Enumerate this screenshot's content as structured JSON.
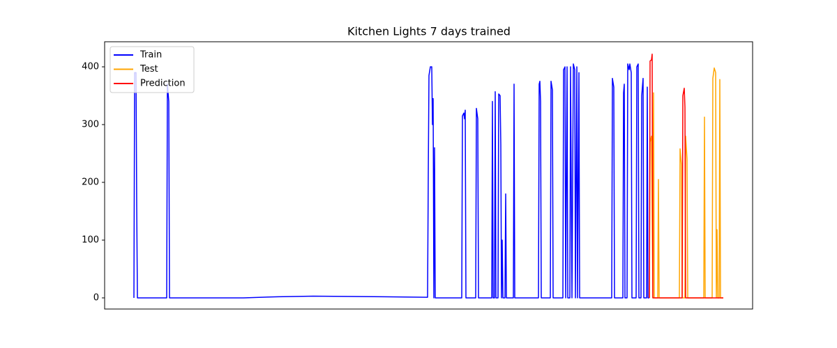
{
  "chart_data": {
    "type": "line",
    "title": "Kitchen Lights 7 days trained",
    "xlim": [
      -42,
      887
    ],
    "ylim": [
      -19.3,
      443.4
    ],
    "yticks": [
      0,
      100,
      200,
      300,
      400
    ],
    "legend": "upper left",
    "series": [
      {
        "name": "Train",
        "color": "#0000ff",
        "x": [
          0,
          1,
          3,
          4,
          5,
          47,
          48,
          50,
          51,
          157,
          207,
          257,
          357,
          421,
          422,
          423,
          425,
          427,
          428,
          429,
          430,
          431,
          432,
          470,
          471,
          473,
          474,
          475,
          476,
          490,
          491,
          493,
          494,
          513,
          514,
          515,
          517,
          518,
          519,
          522,
          523,
          525,
          526,
          527,
          528,
          529,
          532,
          533,
          534,
          544,
          545,
          546,
          580,
          581,
          582,
          583,
          584,
          597,
          598,
          600,
          601,
          615,
          616,
          618,
          619,
          621,
          622,
          625,
          626,
          628,
          630,
          632,
          633,
          635,
          636,
          638,
          639,
          685,
          686,
          688,
          689,
          701,
          702,
          703,
          704,
          707,
          708,
          710,
          711,
          713,
          714,
          720,
          721,
          723,
          724,
          727,
          728,
          730,
          731,
          735,
          736,
          737,
          739
        ],
        "values": [
          0,
          390,
          390,
          160,
          0,
          0,
          370,
          340,
          0,
          0,
          2,
          3,
          2,
          1,
          210,
          385,
          400,
          400,
          300,
          345,
          0,
          260,
          0,
          0,
          315,
          320,
          310,
          325,
          0,
          0,
          328,
          310,
          0,
          0,
          340,
          0,
          0,
          357,
          0,
          0,
          353,
          350,
          265,
          0,
          100,
          0,
          0,
          180,
          0,
          0,
          370,
          0,
          0,
          370,
          375,
          340,
          0,
          0,
          375,
          360,
          0,
          0,
          395,
          400,
          0,
          400,
          0,
          0,
          400,
          0,
          405,
          395,
          0,
          400,
          0,
          390,
          0,
          0,
          380,
          365,
          0,
          0,
          355,
          370,
          0,
          0,
          405,
          395,
          405,
          390,
          0,
          0,
          400,
          405,
          0,
          0,
          350,
          380,
          0,
          0,
          365,
          0,
          0
        ]
      },
      {
        "name": "Test",
        "color": "#ffa500",
        "x": [
          739,
          740,
          742,
          744,
          745,
          746,
          751,
          752,
          753,
          782,
          783,
          785,
          786,
          790,
          791,
          793,
          794,
          817,
          818,
          819,
          829,
          830,
          832,
          834,
          835,
          836,
          837,
          839,
          840,
          841,
          845
        ],
        "values": [
          0,
          270,
          280,
          0,
          355,
          0,
          0,
          205,
          0,
          0,
          258,
          230,
          0,
          0,
          280,
          240,
          0,
          0,
          313,
          0,
          0,
          380,
          398,
          390,
          0,
          118,
          0,
          0,
          378,
          0,
          0
        ]
      },
      {
        "name": "Prediction",
        "color": "#ff0000",
        "x": [
          739,
          740,
          742,
          743,
          744,
          745,
          786,
          787,
          789,
          790,
          791,
          792,
          845
        ],
        "values": [
          0,
          410,
          412,
          422,
          0,
          0,
          0,
          350,
          363,
          330,
          0,
          0,
          0
        ]
      }
    ]
  }
}
